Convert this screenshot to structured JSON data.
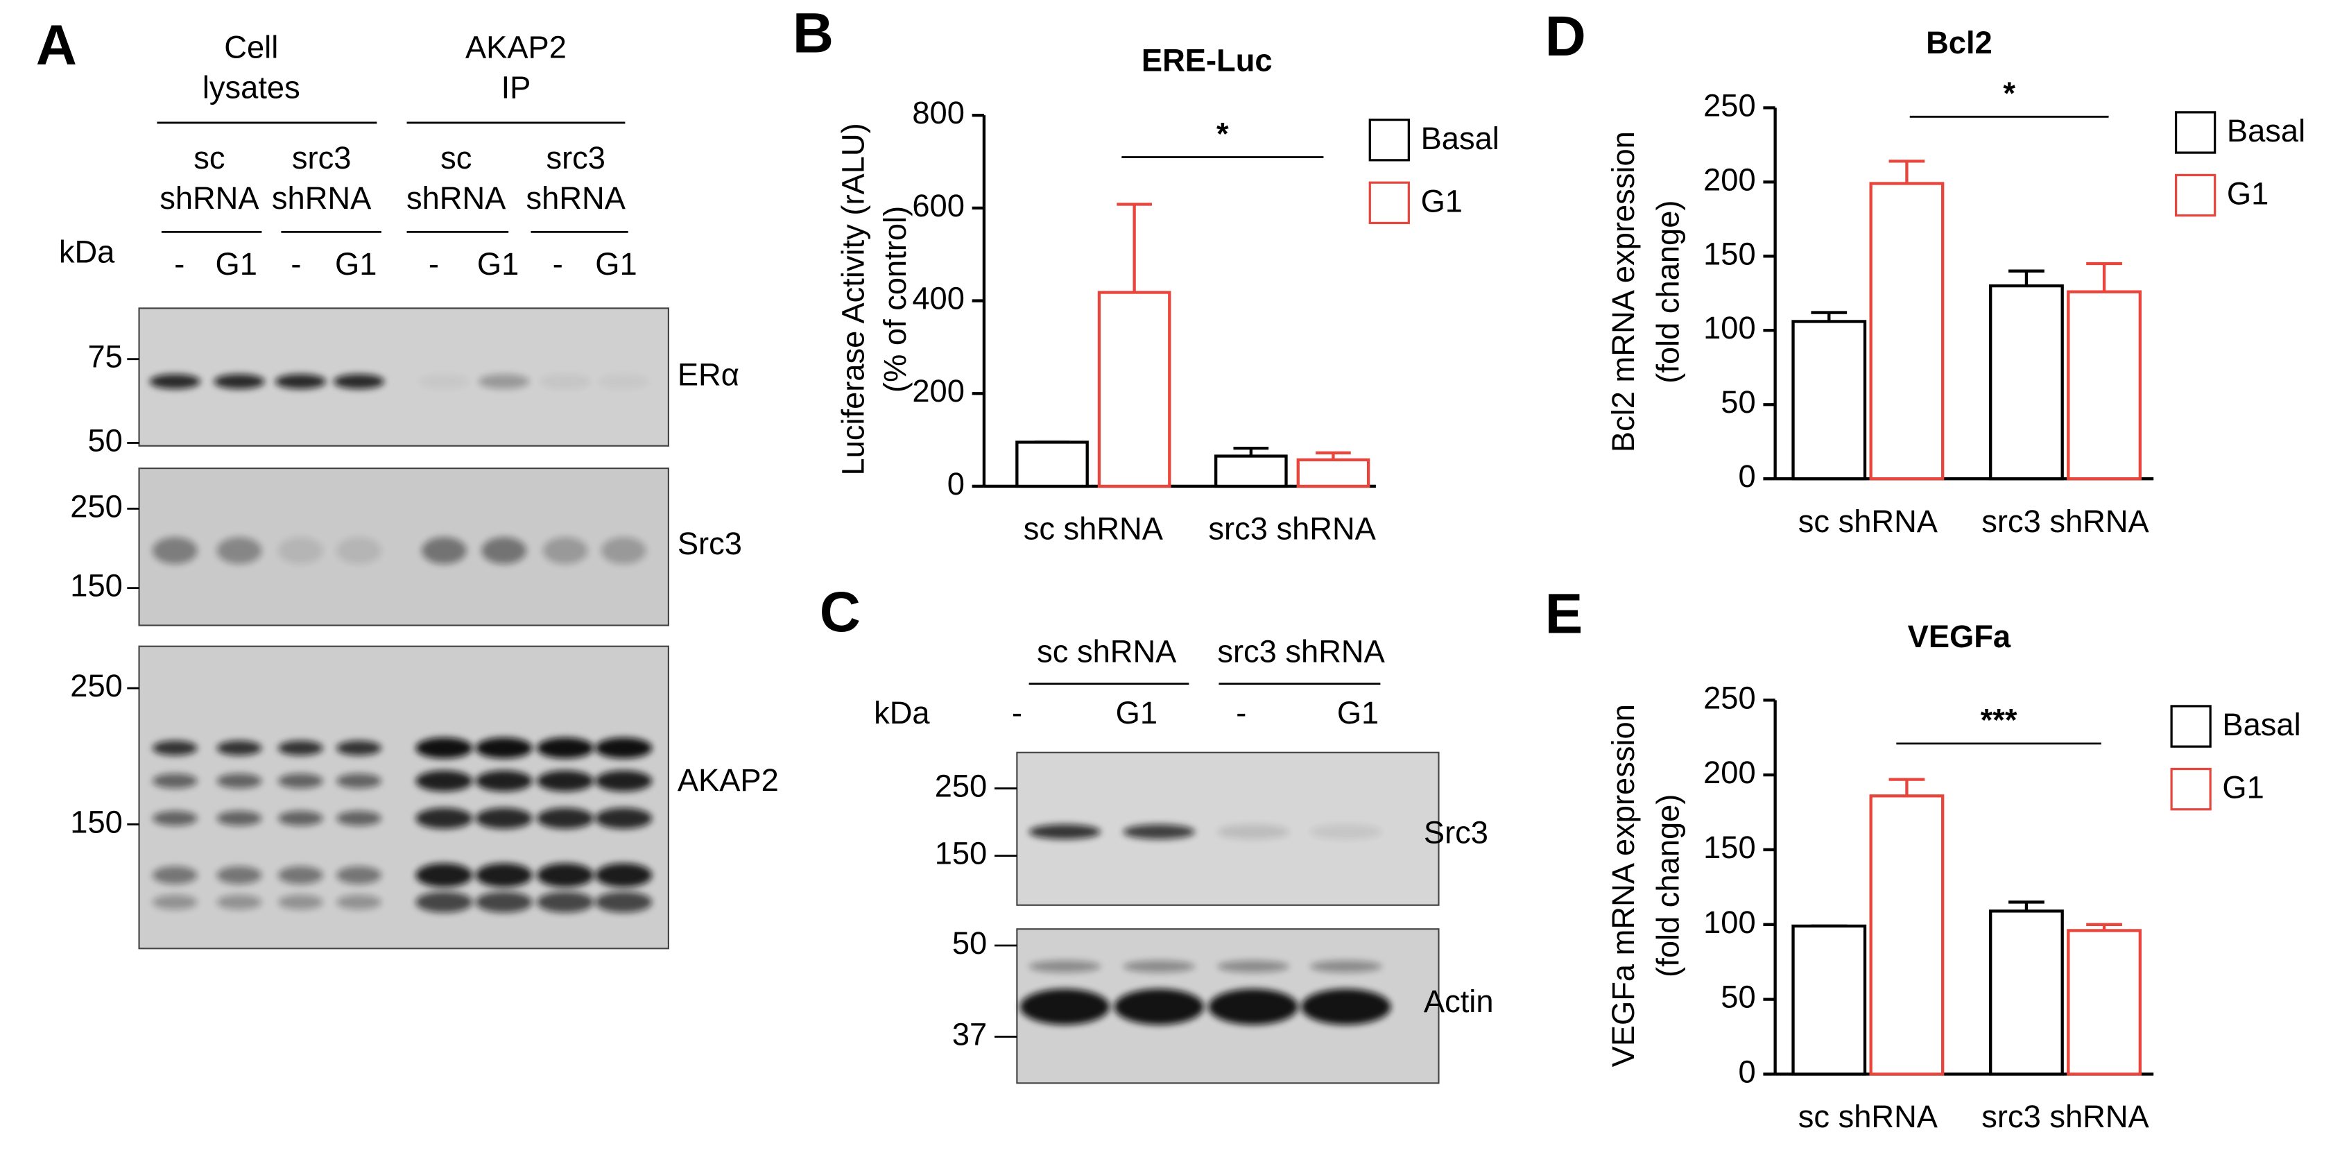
{
  "blot_a": {
    "panel_label": "A",
    "groups": [
      {
        "lines": [
          "Cell",
          "lysates"
        ]
      },
      {
        "lines": [
          "AKAP2",
          "IP"
        ]
      }
    ],
    "conditions": [
      [
        "sc",
        "shRNA"
      ],
      [
        "src3",
        "shRNA"
      ],
      [
        "sc",
        "shRNA"
      ],
      [
        "src3",
        "shRNA"
      ]
    ],
    "kda": "kDa",
    "lanes": [
      "-",
      "G1",
      "-",
      "G1",
      "-",
      "G1",
      "-",
      "G1"
    ],
    "blots": [
      {
        "protein": "ERα",
        "markers": [
          75,
          50
        ]
      },
      {
        "protein": "Src3",
        "markers": [
          250,
          150
        ]
      },
      {
        "protein": "AKAP2",
        "markers": [
          250,
          150
        ]
      }
    ]
  },
  "blot_c": {
    "panel_label": "C",
    "conditions": [
      "sc shRNA",
      "src3 shRNA"
    ],
    "kda": "kDa",
    "lanes": [
      "-",
      "G1",
      "-",
      "G1"
    ],
    "blots": [
      {
        "protein": "Src3",
        "markers": [
          250,
          150
        ]
      },
      {
        "protein": "Actin",
        "markers": [
          50,
          37
        ]
      }
    ]
  },
  "chart_data": [
    {
      "type": "bar",
      "panel_label": "B",
      "title": "ERE-Luc",
      "y_label": [
        "Luciferase Activity (rALU)",
        "(% of control)"
      ],
      "categories": [
        "sc shRNA",
        "src3 shRNA"
      ],
      "series": [
        {
          "name": "Basal",
          "color": "#000000",
          "values": [
            95,
            65
          ],
          "errors": [
            0,
            17
          ]
        },
        {
          "name": "G1",
          "color": "#e8453c",
          "values": [
            418,
            57
          ],
          "errors": [
            190,
            15
          ]
        }
      ],
      "ylim": [
        0,
        800
      ],
      "yticks": [
        0,
        200,
        400,
        600,
        800
      ],
      "annotation": "*"
    },
    {
      "type": "bar",
      "panel_label": "D",
      "title": "Bcl2",
      "y_label": [
        "Bcl2 mRNA expression",
        "(fold change)"
      ],
      "categories": [
        "sc shRNA",
        "src3 shRNA"
      ],
      "series": [
        {
          "name": "Basal",
          "color": "#000000",
          "values": [
            106,
            130
          ],
          "errors": [
            6,
            10
          ]
        },
        {
          "name": "G1",
          "color": "#e8453c",
          "values": [
            199,
            126
          ],
          "errors": [
            15,
            19
          ]
        }
      ],
      "ylim": [
        0,
        250
      ],
      "yticks": [
        0,
        50,
        100,
        150,
        200,
        250
      ],
      "annotation": "*"
    },
    {
      "type": "bar",
      "panel_label": "E",
      "title": "VEGFa",
      "y_label": [
        "VEGFa mRNA expression",
        "(fold change)"
      ],
      "categories": [
        "sc shRNA",
        "src3 shRNA"
      ],
      "series": [
        {
          "name": "Basal",
          "color": "#000000",
          "values": [
            99,
            109
          ],
          "errors": [
            0,
            6
          ]
        },
        {
          "name": "G1",
          "color": "#e8453c",
          "values": [
            186,
            96
          ],
          "errors": [
            11,
            4
          ]
        }
      ],
      "ylim": [
        0,
        250
      ],
      "yticks": [
        0,
        50,
        100,
        150,
        200,
        250
      ],
      "annotation": "***"
    }
  ]
}
